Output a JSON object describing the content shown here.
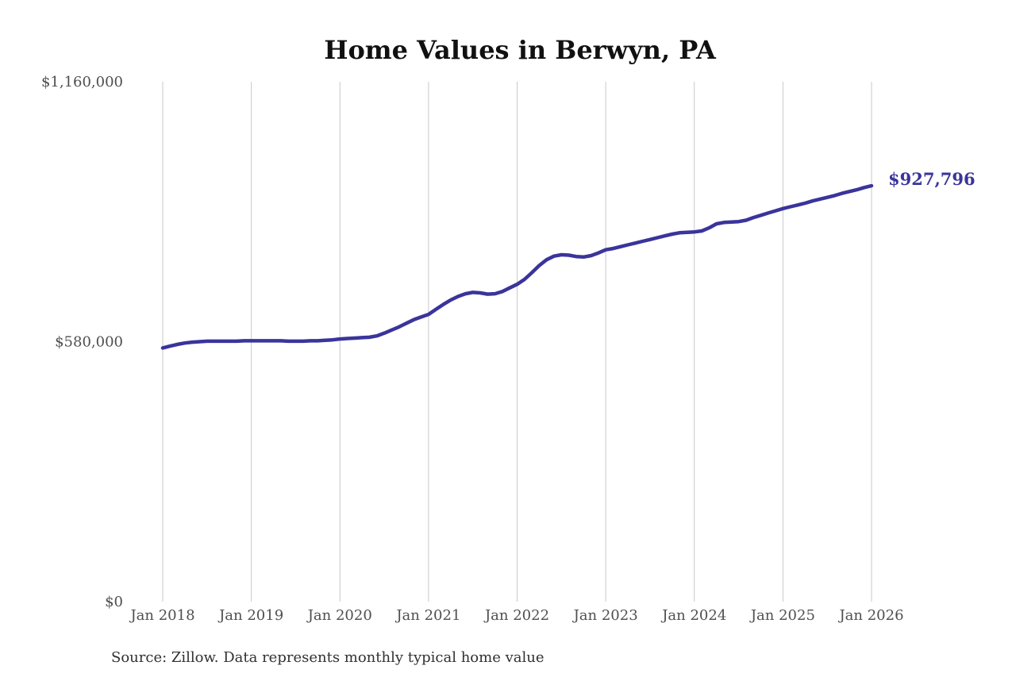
{
  "chart_data": {
    "type": "line",
    "title": "Home Values in Berwyn, PA",
    "source_note": "Source: Zillow. Data represents monthly typical home value",
    "series_name": "Monthly typical home value",
    "end_label": "$927,796",
    "end_value": 927796,
    "x_tick_labels": [
      "Jan 2018",
      "Jan 2019",
      "Jan 2020",
      "Jan 2021",
      "Jan 2022",
      "Jan 2023",
      "Jan 2024",
      "Jan 2025",
      "Jan 2026"
    ],
    "y_ticks": [
      {
        "label": "$0",
        "value": 0
      },
      {
        "label": "$580,000",
        "value": 580000
      },
      {
        "label": "$1,160,000",
        "value": 1160000
      }
    ],
    "ylim": [
      0,
      1160000
    ],
    "grid": "vertical-only",
    "legend": "none",
    "line_color": "#3a349b",
    "end_label_color": "#3a349b",
    "axis_text_color": "#4f4f4f",
    "grid_color": "#c9c9c9",
    "background_color": "#ffffff",
    "x_monthly_start": "Jan 2018",
    "x_monthly_end": "Jan 2026",
    "values_monthly": [
      566000,
      570000,
      574000,
      577000,
      579000,
      580000,
      581000,
      581000,
      581000,
      581000,
      581000,
      582000,
      582000,
      582000,
      582000,
      582000,
      582000,
      581000,
      581000,
      581000,
      582000,
      582000,
      583000,
      584000,
      586000,
      587000,
      588000,
      589000,
      590000,
      593000,
      599000,
      606000,
      613000,
      621000,
      629000,
      635000,
      641000,
      652000,
      663000,
      673000,
      681000,
      687000,
      690000,
      689000,
      686000,
      687000,
      692000,
      700000,
      708000,
      719000,
      734000,
      750000,
      763000,
      771000,
      774000,
      773000,
      770000,
      769000,
      772000,
      778000,
      785000,
      788000,
      792000,
      796000,
      800000,
      804000,
      808000,
      812000,
      816000,
      820000,
      823000,
      824000,
      825000,
      827000,
      834000,
      843000,
      846000,
      847000,
      848000,
      851000,
      857000,
      862000,
      867000,
      872000,
      877000,
      881000,
      885000,
      889000,
      894000,
      898000,
      902000,
      906000,
      911000,
      915000,
      919000,
      924000,
      927796
    ]
  }
}
